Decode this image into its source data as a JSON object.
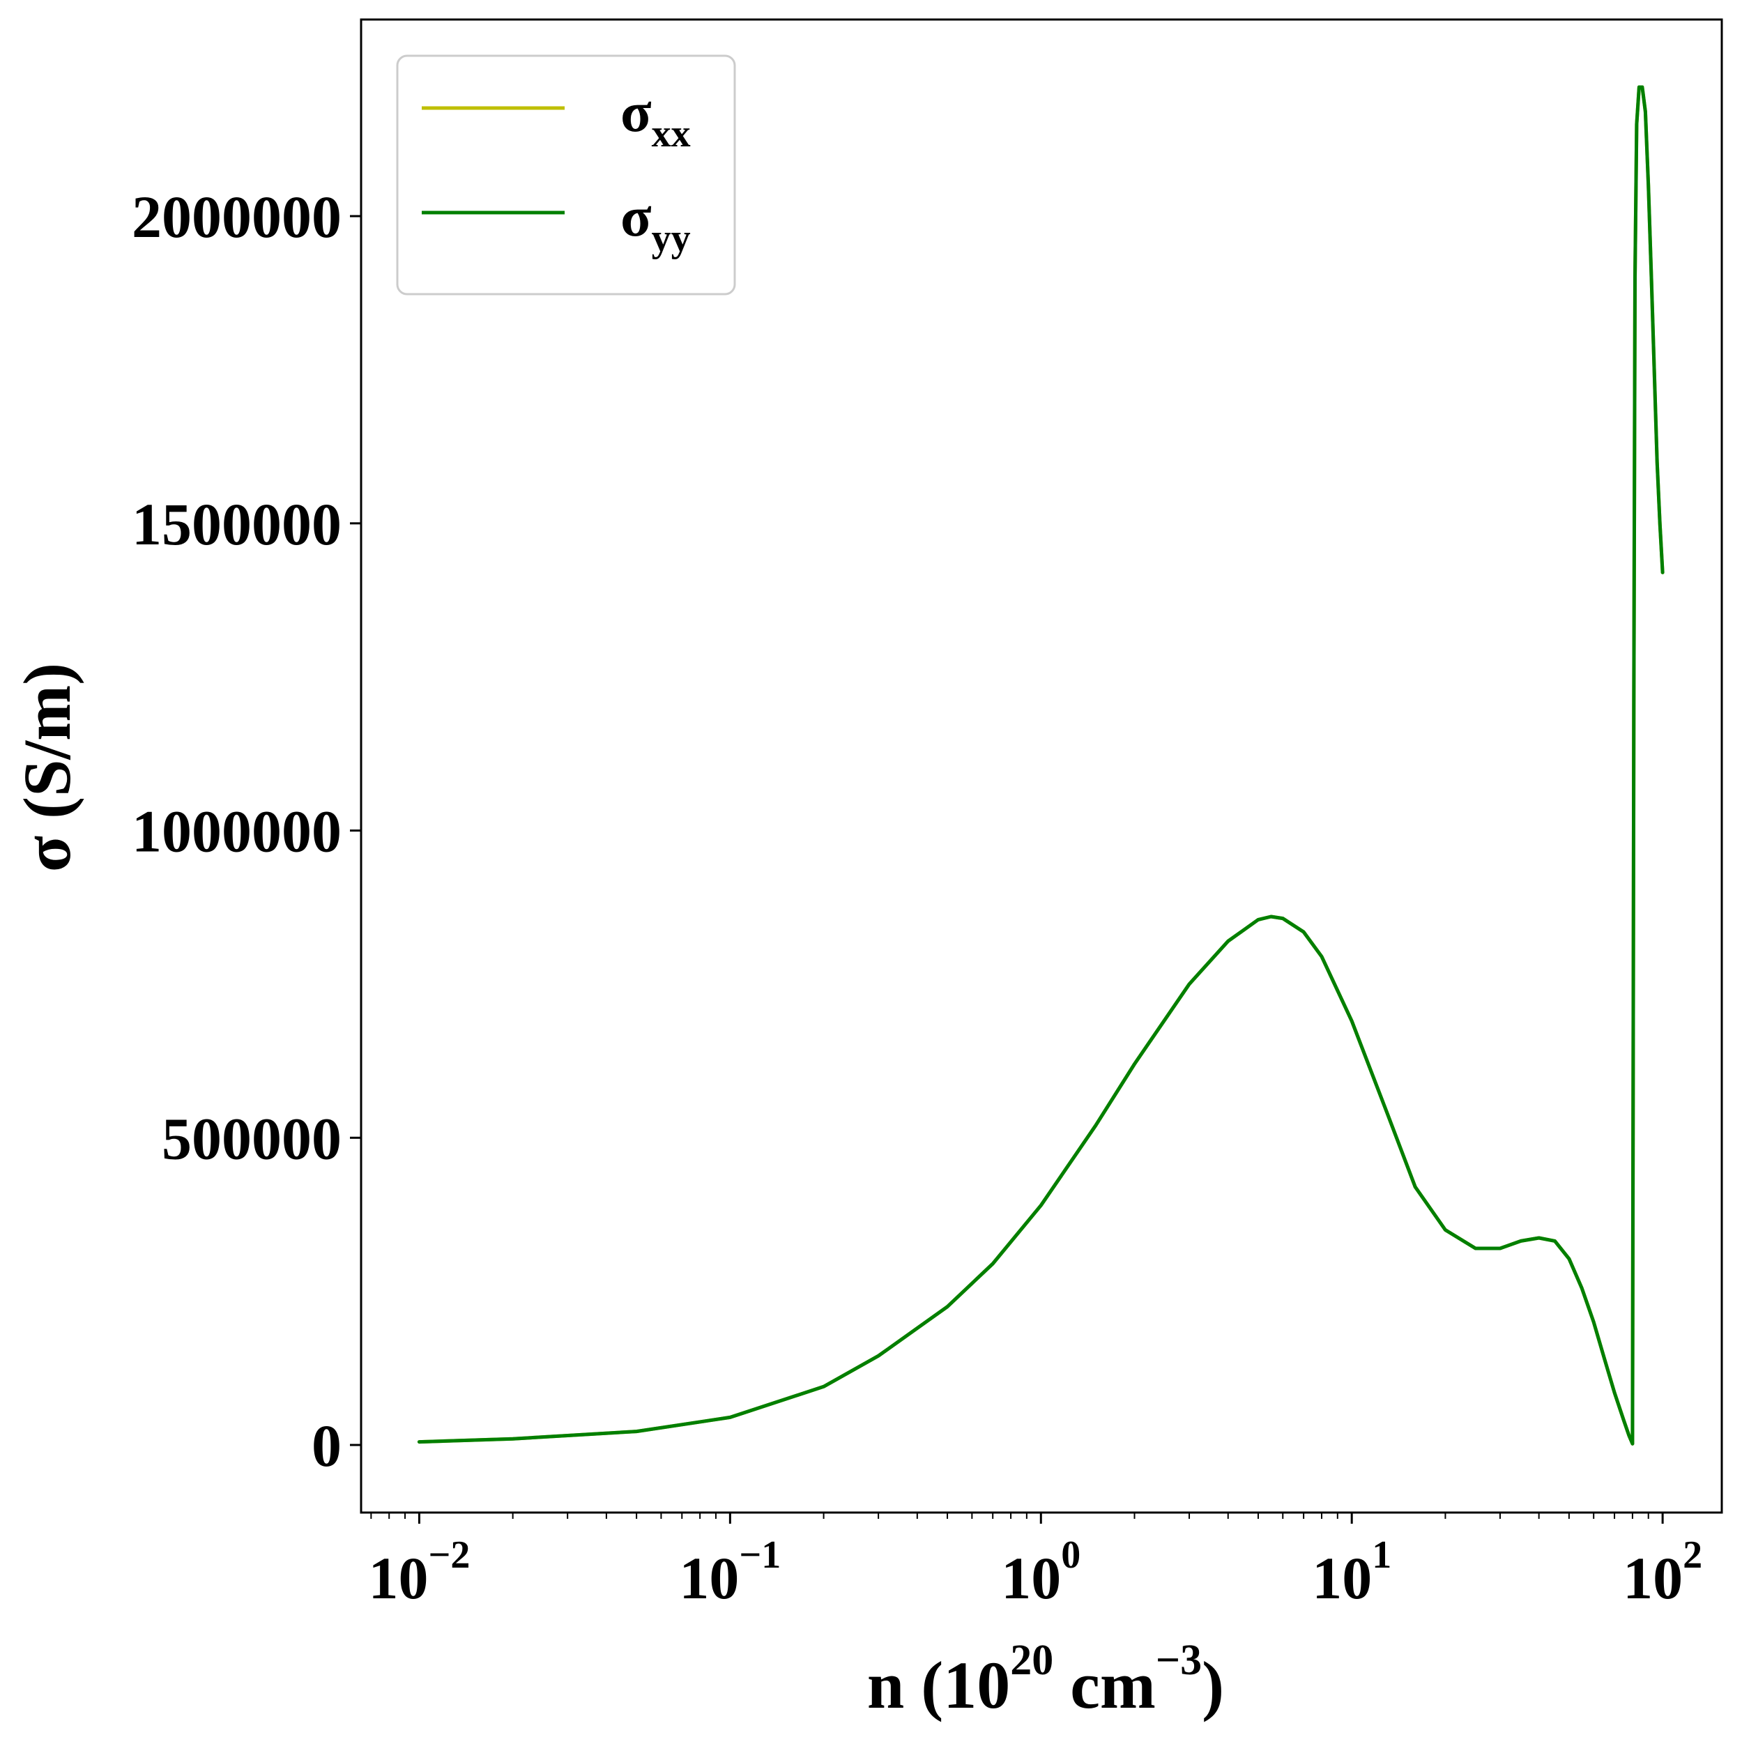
{
  "chart_data": {
    "type": "line",
    "xscale": "log",
    "xlim": [
      0.0065,
      155
    ],
    "ylim": [
      -110000,
      2320000
    ],
    "x_ticks": [
      {
        "base": "10",
        "exp": "−2",
        "value": 0.01
      },
      {
        "base": "10",
        "exp": "−1",
        "value": 0.1
      },
      {
        "base": "10",
        "exp": "0",
        "value": 1
      },
      {
        "base": "10",
        "exp": "1",
        "value": 10
      },
      {
        "base": "10",
        "exp": "2",
        "value": 100
      }
    ],
    "y_ticks": [
      {
        "label": "0",
        "value": 0
      },
      {
        "label": "500000",
        "value": 500000
      },
      {
        "label": "1000000",
        "value": 1000000
      },
      {
        "label": "1500000",
        "value": 1500000
      },
      {
        "label": "2000000",
        "value": 2000000
      }
    ],
    "xlabel": {
      "prefix": "n (10",
      "sup1": "20",
      "mid": " cm",
      "sup2": "−3",
      "suffix": ")"
    },
    "ylabel": "σ (S/m)",
    "grid": false,
    "legend": {
      "position": "upper-left",
      "entries": [
        {
          "symbol": "σ",
          "sub": "xx",
          "color": "#bfbf00"
        },
        {
          "symbol": "σ",
          "sub": "yy",
          "color": "#007f00"
        }
      ]
    },
    "series": [
      {
        "name": "σxx",
        "color": "#bfbf00",
        "x": [
          0.01,
          0.02,
          0.05,
          0.1,
          0.2,
          0.3,
          0.5,
          0.7,
          1.0,
          1.5,
          2.0,
          3.0,
          4.0,
          5.0,
          5.5,
          6.0,
          7.0,
          8.0,
          10,
          13,
          16,
          20,
          25,
          30,
          35,
          40,
          45,
          50,
          55,
          60,
          65,
          70,
          75,
          78,
          80,
          80.8,
          81.5,
          82.5,
          84,
          86,
          88,
          90,
          92,
          94,
          96,
          98,
          100
        ],
        "y": [
          5000,
          10000,
          22000,
          45000,
          95000,
          145000,
          225000,
          295000,
          390000,
          520000,
          620000,
          750000,
          820000,
          855000,
          860000,
          857000,
          835000,
          795000,
          690000,
          540000,
          420000,
          350000,
          320000,
          320000,
          332000,
          337000,
          332000,
          303000,
          255000,
          200000,
          140000,
          85000,
          40000,
          15000,
          2000,
          1200000,
          1900000,
          2150000,
          2210000,
          2210000,
          2170000,
          2050000,
          1900000,
          1750000,
          1600000,
          1500000,
          1420000
        ]
      },
      {
        "name": "σyy",
        "color": "#007f00",
        "x": [
          0.01,
          0.02,
          0.05,
          0.1,
          0.2,
          0.3,
          0.5,
          0.7,
          1.0,
          1.5,
          2.0,
          3.0,
          4.0,
          5.0,
          5.5,
          6.0,
          7.0,
          8.0,
          10,
          13,
          16,
          20,
          25,
          30,
          35,
          40,
          45,
          50,
          55,
          60,
          65,
          70,
          75,
          78,
          80,
          80.8,
          81.5,
          82.5,
          84,
          86,
          88,
          90,
          92,
          94,
          96,
          98,
          100
        ],
        "y": [
          5000,
          10000,
          22000,
          45000,
          95000,
          145000,
          225000,
          295000,
          390000,
          520000,
          620000,
          750000,
          820000,
          855000,
          860000,
          857000,
          835000,
          795000,
          690000,
          540000,
          420000,
          350000,
          320000,
          320000,
          332000,
          337000,
          332000,
          303000,
          255000,
          200000,
          140000,
          85000,
          40000,
          15000,
          2000,
          1200000,
          1900000,
          2150000,
          2210000,
          2210000,
          2170000,
          2050000,
          1900000,
          1750000,
          1600000,
          1500000,
          1420000
        ]
      }
    ]
  }
}
